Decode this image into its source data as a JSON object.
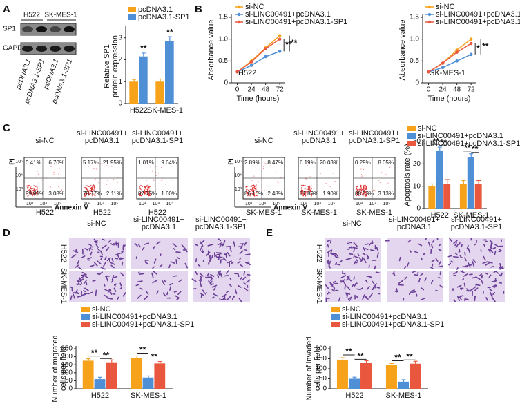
{
  "panels": [
    "A",
    "B",
    "C",
    "D",
    "E"
  ],
  "blot": {
    "cell_lines": [
      "H522",
      "SK-MES-1"
    ],
    "proteins": [
      "SP1",
      "GAPDH"
    ],
    "lanes": [
      "pcDNA3.1",
      "pcDNA3.1-SP1",
      "pcDNA3.1",
      "pcDNA3.1-SP1"
    ]
  },
  "flow": {
    "y_axis": "PI",
    "x_axis": "Annexin V",
    "yticks": [
      "10⁵",
      "10⁴",
      "10³"
    ],
    "xticks": [
      "10³",
      "10⁴",
      "10⁵"
    ],
    "plots": [
      {
        "title": [
          "si-NC"
        ],
        "cell_line": "H522",
        "quadrants": [
          "0.41%",
          "6.70%",
          "89.81%",
          "3.08%"
        ]
      },
      {
        "title": [
          "si-LINC00491+",
          "pcDNA3.1"
        ],
        "cell_line": "H522",
        "quadrants": [
          "5.17%",
          "21.95%",
          "70.77%",
          "2.11%"
        ]
      },
      {
        "title": [
          "si-LINC00491+",
          "pcDNA3.1-SP1"
        ],
        "cell_line": "H522",
        "quadrants": [
          "1.01%",
          "9.64%",
          "87.75%",
          "1.60%"
        ]
      },
      {
        "title": [
          "si-NC"
        ],
        "cell_line": "SK-MES-1",
        "quadrants": [
          "2.89%",
          "8.47%",
          "86.16%",
          "2.48%"
        ]
      },
      {
        "title": [
          "si-LINC00491+",
          "pcDNA3.1"
        ],
        "cell_line": "SK-MES-1",
        "quadrants": [
          "6.19%",
          "20.03%",
          "71.89%",
          "1.90%"
        ]
      },
      {
        "title": [
          "si-LINC00491+",
          "pcDNA3.1-SP1"
        ],
        "cell_line": "SK-MES-1",
        "quadrants": [
          "0.29%",
          "8.05%",
          "88.53%",
          "3.13%"
        ]
      }
    ]
  },
  "micrographs": [
    {
      "columns": [
        [
          "si-NC"
        ],
        [
          "si-LINC00491+",
          "pcDNA3.1"
        ],
        [
          "si-LINC00491+",
          "pcDNA3.1-SP1"
        ]
      ],
      "rows": [
        "H522",
        "SK-MES-1"
      ]
    },
    {
      "columns": [
        [
          "si-NC"
        ],
        [
          "si-LINC00491+",
          "pcDNA3.1"
        ],
        [
          "si-LINC00491+",
          "pcDNA3.1-SP1"
        ]
      ],
      "rows": [
        "H522",
        "SK-MES-1"
      ]
    }
  ],
  "chart_data": [
    {
      "type": "bar",
      "ylabel": [
        "Relative SP1",
        "protein expression"
      ],
      "categories": [
        "H522",
        "SK-MES-1"
      ],
      "series": [
        {
          "name": "pcDNA3.1",
          "color": "#f7a21b",
          "values": [
            1.0,
            1.0
          ],
          "errors": [
            0.1,
            0.12
          ]
        },
        {
          "name": "pcDNA3.1-SP1",
          "color": "#4f8fd6",
          "values": [
            2.15,
            2.85
          ],
          "errors": [
            0.15,
            0.2
          ]
        }
      ],
      "ylim": [
        0,
        3.4
      ],
      "yticks": [
        0,
        1,
        2,
        3
      ],
      "annotations": [
        "**",
        "**"
      ]
    },
    {
      "type": "line",
      "ylabel": [
        "Absorbance value"
      ],
      "xlabel": "Time (hours)",
      "label": "H522",
      "x": [
        0,
        24,
        48,
        72
      ],
      "series": [
        {
          "name": "si-NC",
          "color": "#f7a21b",
          "values": [
            0.25,
            0.5,
            0.8,
            1.08
          ]
        },
        {
          "name": "si-LINC00491+pcDNA3.1",
          "color": "#4f8fd6",
          "values": [
            0.25,
            0.4,
            0.6,
            0.72
          ]
        },
        {
          "name": "si-LINC00491+pcDNA3.1-SP1",
          "color": "#e9573f",
          "values": [
            0.25,
            0.48,
            0.78,
            1.0
          ]
        }
      ],
      "xlim": [
        -10,
        80
      ],
      "xticks": [
        0,
        24,
        48,
        72
      ],
      "ylim": [
        0,
        1.5
      ],
      "yticks": [
        0,
        0.5,
        {
          "value": 1,
          "label": "1.0"
        },
        1.5
      ],
      "annotations": [
        "**",
        "**"
      ]
    },
    {
      "type": "line",
      "ylabel": [
        "Absorbance value"
      ],
      "xlabel": "Time (hours)",
      "label": "SK-MES-1",
      "x": [
        0,
        24,
        48,
        72
      ],
      "series": [
        {
          "name": "si-NC",
          "color": "#f7a21b",
          "values": [
            0.25,
            0.45,
            0.75,
            1.0
          ]
        },
        {
          "name": "si-LINC00491+pcDNA3.1",
          "color": "#4f8fd6",
          "values": [
            0.25,
            0.35,
            0.5,
            0.65
          ]
        },
        {
          "name": "si-LINC00491+pcDNA3.1-SP1",
          "color": "#e9573f",
          "values": [
            0.25,
            0.45,
            0.7,
            0.9
          ]
        }
      ],
      "xlim": [
        -10,
        80
      ],
      "xticks": [
        0,
        24,
        48,
        72
      ],
      "ylim": [
        0,
        1.5
      ],
      "yticks": [
        0,
        0.5,
        {
          "value": 1,
          "label": "1.0"
        },
        1.5
      ],
      "annotations": [
        "*",
        "**"
      ]
    },
    {
      "type": "bar",
      "ylabel": [
        "Apoptosis rate (%)"
      ],
      "categories": [
        "H522",
        "SK-MES-1"
      ],
      "series": [
        {
          "name": "si-NC",
          "color": "#f7a21b",
          "values": [
            10,
            11
          ],
          "errors": [
            1,
            1.5
          ]
        },
        {
          "name": "si-LINC00491+pcDNA3.1",
          "color": "#4f8fd6",
          "values": [
            26,
            23
          ],
          "errors": [
            1.5,
            1.5
          ]
        },
        {
          "name": "si-LINC00491+pcDNA3.1-SP1",
          "color": "#e9573f",
          "values": [
            11,
            11
          ],
          "errors": [
            2,
            1.5
          ]
        }
      ],
      "ylim": [
        0,
        30
      ],
      "yticks": [
        0,
        10,
        20,
        30
      ],
      "annotations": [
        "**",
        "**",
        "**",
        "**"
      ]
    },
    {
      "type": "bar",
      "ylabel": [
        "Number of migrated",
        "cells per field"
      ],
      "categories": [
        "H522",
        "SK-MES-1"
      ],
      "series": [
        {
          "name": "si-NC",
          "color": "#f7a21b",
          "values": [
            175,
            190
          ],
          "errors": [
            12,
            15
          ]
        },
        {
          "name": "si-LINC00491+pcDNA3.1",
          "color": "#4f8fd6",
          "values": [
            60,
            70
          ],
          "errors": [
            12,
            10
          ]
        },
        {
          "name": "si-LINC00491+pcDNA3.1-SP1",
          "color": "#e9573f",
          "values": [
            165,
            158
          ],
          "errors": [
            15,
            12
          ]
        }
      ],
      "ylim": [
        0,
        250
      ],
      "yticks": [
        0,
        50,
        100,
        150,
        200,
        250
      ],
      "annotations": [
        "**",
        "**",
        "**",
        "**"
      ]
    },
    {
      "type": "bar",
      "ylabel": [
        "Number of invaded",
        "cells per field"
      ],
      "categories": [
        "H522",
        "SK-MES-1"
      ],
      "series": [
        {
          "name": "si-NC",
          "color": "#f7a21b",
          "values": [
            145,
            118
          ],
          "errors": [
            10,
            8
          ]
        },
        {
          "name": "si-LINC00491+pcDNA3.1",
          "color": "#4f8fd6",
          "values": [
            50,
            35
          ],
          "errors": [
            8,
            10
          ]
        },
        {
          "name": "si-LINC00491+pcDNA3.1-SP1",
          "color": "#e9573f",
          "values": [
            130,
            125
          ],
          "errors": [
            10,
            12
          ]
        }
      ],
      "ylim": [
        0,
        200
      ],
      "yticks": [
        0,
        50,
        100,
        150,
        200
      ],
      "annotations": [
        "**",
        "**",
        "**",
        "**"
      ]
    }
  ]
}
